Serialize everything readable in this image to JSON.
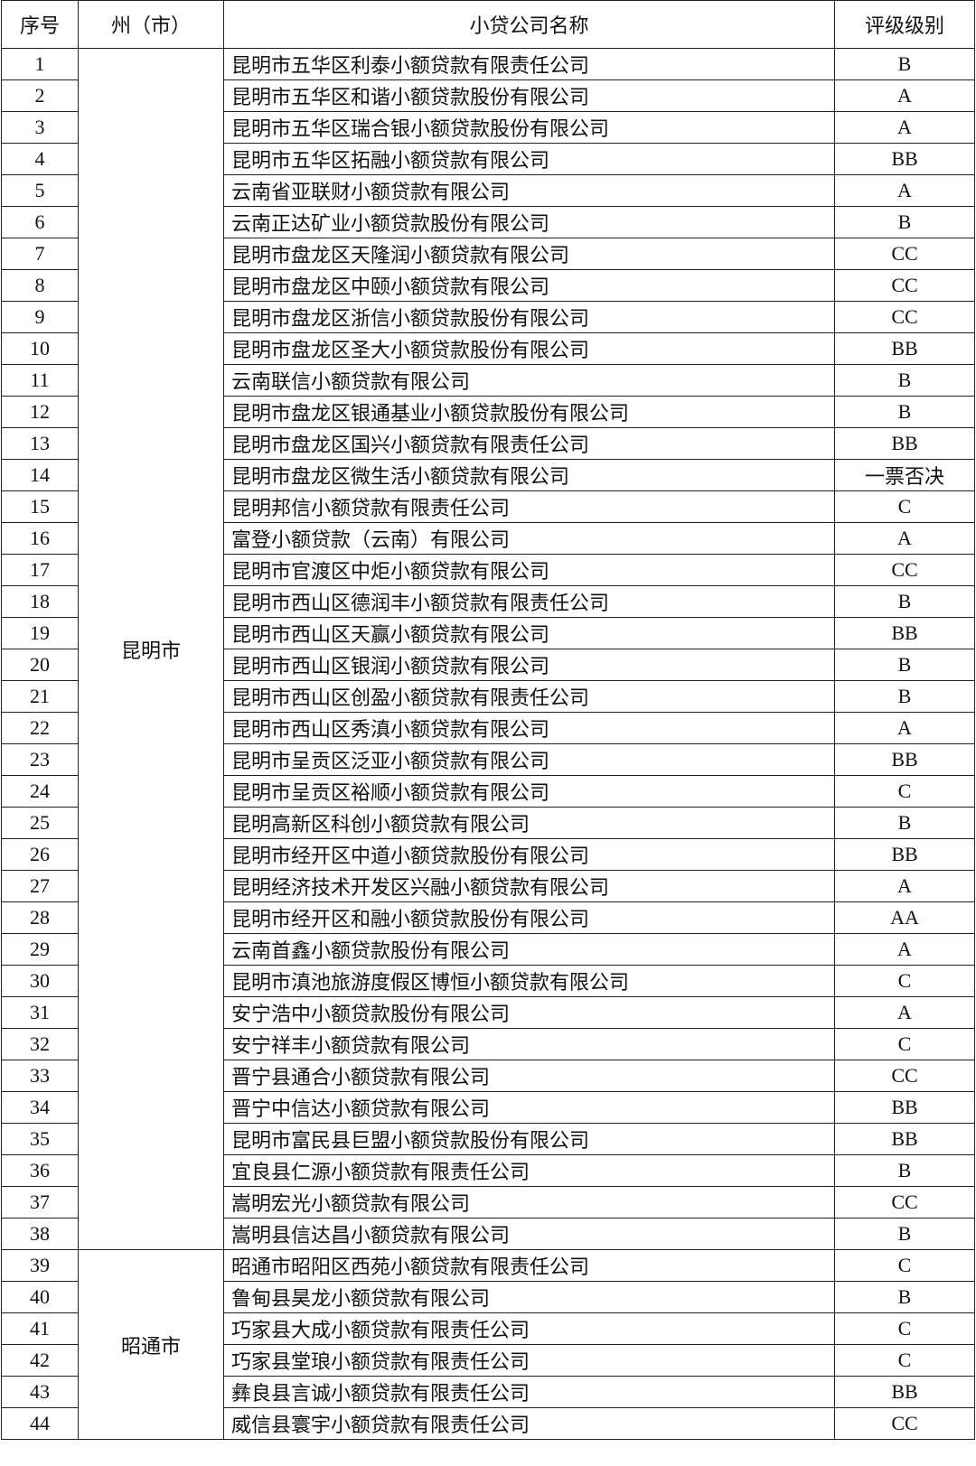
{
  "header": [
    "序号",
    "州（市）",
    "小贷公司名称",
    "评级级别"
  ],
  "regions": [
    {
      "name": "昆明市",
      "rows": [
        [
          1,
          "昆明市五华区利泰小额贷款有限责任公司",
          "B"
        ],
        [
          2,
          "昆明市五华区和谐小额贷款股份有限公司",
          "A"
        ],
        [
          3,
          "昆明市五华区瑞合银小额贷款股份有限公司",
          "A"
        ],
        [
          4,
          "昆明市五华区拓融小额贷款有限公司",
          "BB"
        ],
        [
          5,
          "云南省亚联财小额贷款有限公司",
          "A"
        ],
        [
          6,
          "云南正达矿业小额贷款股份有限公司",
          "B"
        ],
        [
          7,
          "昆明市盘龙区天隆润小额贷款有限公司",
          "CC"
        ],
        [
          8,
          "昆明市盘龙区中颐小额贷款有限公司",
          "CC"
        ],
        [
          9,
          "昆明市盘龙区浙信小额贷款股份有限公司",
          "CC"
        ],
        [
          10,
          "昆明市盘龙区圣大小额贷款股份有限公司",
          "BB"
        ],
        [
          11,
          "云南联信小额贷款有限公司",
          "B"
        ],
        [
          12,
          "昆明市盘龙区银通基业小额贷款股份有限公司",
          "B"
        ],
        [
          13,
          "昆明市盘龙区国兴小额贷款有限责任公司",
          "BB"
        ],
        [
          14,
          "昆明市盘龙区微生活小额贷款有限公司",
          "一票否决"
        ],
        [
          15,
          "昆明邦信小额贷款有限责任公司",
          "C"
        ],
        [
          16,
          "富登小额贷款（云南）有限公司",
          "A"
        ],
        [
          17,
          "昆明市官渡区中炬小额贷款有限公司",
          "CC"
        ],
        [
          18,
          "昆明市西山区德润丰小额贷款有限责任公司",
          "B"
        ],
        [
          19,
          "昆明市西山区天赢小额贷款有限公司",
          "BB"
        ],
        [
          20,
          "昆明市西山区银润小额贷款有限公司",
          "B"
        ],
        [
          21,
          "昆明市西山区创盈小额贷款有限责任公司",
          "B"
        ],
        [
          22,
          "昆明市西山区秀滇小额贷款有限公司",
          "A"
        ],
        [
          23,
          "昆明市呈贡区泛亚小额贷款有限公司",
          "BB"
        ],
        [
          24,
          "昆明市呈贡区裕顺小额贷款有限公司",
          "C"
        ],
        [
          25,
          "昆明高新区科创小额贷款有限公司",
          "B"
        ],
        [
          26,
          "昆明市经开区中道小额贷款股份有限公司",
          "BB"
        ],
        [
          27,
          "昆明经济技术开发区兴融小额贷款有限公司",
          "A"
        ],
        [
          28,
          "昆明市经开区和融小额贷款股份有限公司",
          "AA"
        ],
        [
          29,
          "云南首鑫小额贷款股份有限公司",
          "A"
        ],
        [
          30,
          "昆明市滇池旅游度假区博恒小额贷款有限公司",
          "C"
        ],
        [
          31,
          "安宁浩中小额贷款股份有限公司",
          "A"
        ],
        [
          32,
          "安宁祥丰小额贷款有限公司",
          "C"
        ],
        [
          33,
          "晋宁县通合小额贷款有限公司",
          "CC"
        ],
        [
          34,
          "晋宁中信达小额贷款有限公司",
          "BB"
        ],
        [
          35,
          "昆明市富民县巨盟小额贷款股份有限公司",
          "BB"
        ],
        [
          36,
          "宜良县仁源小额贷款有限责任公司",
          "B"
        ],
        [
          37,
          "嵩明宏光小额贷款有限公司",
          "CC"
        ],
        [
          38,
          "嵩明县信达昌小额贷款有限公司",
          "B"
        ]
      ]
    },
    {
      "name": "昭通市",
      "rows": [
        [
          39,
          "昭通市昭阳区西苑小额贷款有限责任公司",
          "C"
        ],
        [
          40,
          "鲁甸县昊龙小额贷款有限公司",
          "B"
        ],
        [
          41,
          "巧家县大成小额贷款有限责任公司",
          "C"
        ],
        [
          42,
          "巧家县堂琅小额贷款有限责任公司",
          "C"
        ],
        [
          43,
          "彝良县言诚小额贷款有限责任公司",
          "BB"
        ],
        [
          44,
          "威信县寰宇小额贷款有限责任公司",
          "CC"
        ]
      ]
    }
  ]
}
